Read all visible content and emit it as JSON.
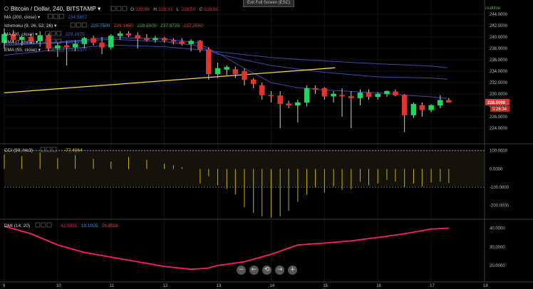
{
  "header": {
    "symbol_title": "Bitcoin / Dollar, 240, BITSTAMP",
    "ohlc": [
      {
        "label": "O",
        "value": "228.88"
      },
      {
        "label": "H",
        "value": "229.31"
      },
      {
        "label": "L",
        "value": "228.50"
      },
      {
        "label": "C",
        "value": "228.50"
      }
    ],
    "exit_fullscreen": "Exit Full Screen (ESC)",
    "realtime": "realtime"
  },
  "indicators": [
    {
      "name": "MA (200, close)",
      "values": [
        {
          "v": "234.5857",
          "color": "#3a6bd1"
        }
      ]
    },
    {
      "name": "Ichimoku (9, 26, 52, 26)",
      "values": [
        {
          "v": "225.7500",
          "color": "#2196f3"
        },
        {
          "v": "229.1450",
          "color": "#e53935"
        },
        {
          "v": "228.5000",
          "color": "#4caf50"
        },
        {
          "v": "237.8725",
          "color": "#4caf50"
        },
        {
          "v": "237.2550",
          "color": "#e53935"
        }
      ]
    },
    {
      "name": "MA (20, close)",
      "values": [
        {
          "v": "229.1975",
          "color": "#3a6bd1"
        }
      ]
    },
    {
      "name": "EMA (7, close)",
      "values": [
        {
          "v": "228.5972",
          "color": "#3a6bd1"
        }
      ]
    },
    {
      "name": "EMA (55, close)",
      "values": [
        {
          "v": "232.5377",
          "color": "#3a6bd1"
        }
      ]
    }
  ],
  "price_badges": {
    "last": "228.5000",
    "countdown": "3:28:34"
  },
  "cci_panel": {
    "label": "CCI (50, hlc3)",
    "value": "-77.4064",
    "ticks": [
      "100.0000",
      "0.0000",
      "-100.0000",
      "-200.0000"
    ]
  },
  "dmi_panel": {
    "label": "DMI (14, 20)",
    "values": [
      {
        "v": "42.5931",
        "color": "#e91e63"
      },
      {
        "v": "10.1925",
        "color": "#2196f3"
      },
      {
        "v": "26.8598",
        "color": "#e53935"
      }
    ],
    "ticks": [
      "40.0000",
      "30.0000",
      "20.0000"
    ]
  },
  "nav_buttons": [
    "−",
    "←",
    "⟲",
    "→",
    "+"
  ],
  "chart_data": {
    "type": "candlestick",
    "title": "Bitcoin / Dollar, 240, BITSTAMP",
    "x_ticks": [
      "9",
      "10",
      "11",
      "12",
      "13",
      "14",
      "15",
      "16",
      "17",
      "18"
    ],
    "x_range": [
      9,
      18
    ],
    "y_ticks": [
      "244.0000",
      "242.0000",
      "240.0000",
      "238.0000",
      "236.0000",
      "234.0000",
      "232.0000",
      "230.0000",
      "228.0000",
      "226.0000",
      "224.0000"
    ],
    "ylim": [
      221.5,
      246
    ],
    "candles": [
      {
        "t": 9.0,
        "o": 239.0,
        "h": 241.5,
        "l": 238.0,
        "c": 240.5
      },
      {
        "t": 9.17,
        "o": 240.5,
        "h": 241.2,
        "l": 239.0,
        "c": 239.5
      },
      {
        "t": 9.33,
        "o": 239.5,
        "h": 240.3,
        "l": 238.5,
        "c": 240.0
      },
      {
        "t": 9.5,
        "o": 240.0,
        "h": 240.5,
        "l": 238.8,
        "c": 239.3
      },
      {
        "t": 9.67,
        "o": 239.3,
        "h": 241.0,
        "l": 238.3,
        "c": 240.3
      },
      {
        "t": 9.83,
        "o": 240.3,
        "h": 240.6,
        "l": 237.5,
        "c": 238.0
      },
      {
        "t": 10.0,
        "o": 238.0,
        "h": 239.0,
        "l": 236.5,
        "c": 238.5
      },
      {
        "t": 10.17,
        "o": 238.5,
        "h": 239.2,
        "l": 235.0,
        "c": 238.2
      },
      {
        "t": 10.33,
        "o": 238.2,
        "h": 239.5,
        "l": 237.5,
        "c": 238.8
      },
      {
        "t": 10.5,
        "o": 238.8,
        "h": 240.0,
        "l": 238.0,
        "c": 239.8
      },
      {
        "t": 10.67,
        "o": 239.8,
        "h": 240.2,
        "l": 238.5,
        "c": 239.0
      },
      {
        "t": 10.83,
        "o": 239.0,
        "h": 240.0,
        "l": 237.0,
        "c": 238.2
      },
      {
        "t": 11.0,
        "o": 238.2,
        "h": 240.5,
        "l": 237.8,
        "c": 240.2
      },
      {
        "t": 11.17,
        "o": 240.2,
        "h": 241.0,
        "l": 239.5,
        "c": 240.6
      },
      {
        "t": 11.33,
        "o": 240.6,
        "h": 241.0,
        "l": 240.0,
        "c": 240.3
      },
      {
        "t": 11.5,
        "o": 240.3,
        "h": 240.8,
        "l": 238.0,
        "c": 239.8
      },
      {
        "t": 11.67,
        "o": 239.8,
        "h": 240.5,
        "l": 239.2,
        "c": 239.5
      },
      {
        "t": 11.83,
        "o": 239.5,
        "h": 240.2,
        "l": 239.0,
        "c": 239.8
      },
      {
        "t": 12.0,
        "o": 239.8,
        "h": 240.0,
        "l": 239.0,
        "c": 239.4
      },
      {
        "t": 12.17,
        "o": 239.4,
        "h": 239.8,
        "l": 238.7,
        "c": 239.2
      },
      {
        "t": 12.33,
        "o": 239.2,
        "h": 239.8,
        "l": 238.5,
        "c": 238.8
      },
      {
        "t": 12.5,
        "o": 238.8,
        "h": 239.6,
        "l": 237.5,
        "c": 239.3
      },
      {
        "t": 12.67,
        "o": 239.3,
        "h": 239.5,
        "l": 237.3,
        "c": 237.8
      },
      {
        "t": 12.83,
        "o": 237.8,
        "h": 238.2,
        "l": 232.5,
        "c": 233.5
      },
      {
        "t": 13.0,
        "o": 233.5,
        "h": 235.5,
        "l": 232.8,
        "c": 234.5
      },
      {
        "t": 13.17,
        "o": 234.3,
        "h": 235.0,
        "l": 233.3,
        "c": 234.7
      },
      {
        "t": 13.33,
        "o": 234.3,
        "h": 234.8,
        "l": 232.8,
        "c": 233.5
      },
      {
        "t": 13.5,
        "o": 234.0,
        "h": 234.5,
        "l": 231.5,
        "c": 232.5
      },
      {
        "t": 13.67,
        "o": 232.5,
        "h": 232.8,
        "l": 231.0,
        "c": 231.8
      },
      {
        "t": 13.83,
        "o": 231.5,
        "h": 232.0,
        "l": 229.0,
        "c": 229.8
      },
      {
        "t": 14.0,
        "o": 229.8,
        "h": 230.5,
        "l": 228.5,
        "c": 229.7
      },
      {
        "t": 14.17,
        "o": 229.7,
        "h": 230.5,
        "l": 224.0,
        "c": 228.3
      },
      {
        "t": 14.33,
        "o": 228.3,
        "h": 228.8,
        "l": 227.5,
        "c": 228.0
      },
      {
        "t": 14.5,
        "o": 228.0,
        "h": 229.0,
        "l": 225.0,
        "c": 228.5
      },
      {
        "t": 14.67,
        "o": 228.5,
        "h": 231.5,
        "l": 227.8,
        "c": 231.0
      },
      {
        "t": 14.83,
        "o": 231.0,
        "h": 231.5,
        "l": 230.0,
        "c": 230.8
      },
      {
        "t": 15.0,
        "o": 231.0,
        "h": 231.2,
        "l": 229.0,
        "c": 229.6
      },
      {
        "t": 15.17,
        "o": 229.6,
        "h": 230.5,
        "l": 228.5,
        "c": 230.0
      },
      {
        "t": 15.33,
        "o": 229.8,
        "h": 231.0,
        "l": 226.0,
        "c": 229.6
      },
      {
        "t": 15.5,
        "o": 229.6,
        "h": 230.5,
        "l": 224.0,
        "c": 229.3
      },
      {
        "t": 15.67,
        "o": 229.3,
        "h": 230.8,
        "l": 228.0,
        "c": 230.2
      },
      {
        "t": 15.83,
        "o": 230.2,
        "h": 230.8,
        "l": 229.0,
        "c": 229.5
      },
      {
        "t": 16.0,
        "o": 229.5,
        "h": 230.3,
        "l": 229.0,
        "c": 230.0
      },
      {
        "t": 16.17,
        "o": 230.0,
        "h": 230.6,
        "l": 229.5,
        "c": 230.5
      },
      {
        "t": 16.33,
        "o": 230.4,
        "h": 230.8,
        "l": 229.6,
        "c": 229.8
      },
      {
        "t": 16.5,
        "o": 229.8,
        "h": 230.0,
        "l": 223.3,
        "c": 226.3
      },
      {
        "t": 16.67,
        "o": 226.3,
        "h": 228.5,
        "l": 225.8,
        "c": 228.2
      },
      {
        "t": 16.83,
        "o": 228.0,
        "h": 228.5,
        "l": 226.0,
        "c": 227.2
      },
      {
        "t": 17.0,
        "o": 227.2,
        "h": 228.2,
        "l": 226.8,
        "c": 228.0
      },
      {
        "t": 17.17,
        "o": 228.0,
        "h": 229.8,
        "l": 227.5,
        "c": 228.9
      },
      {
        "t": 17.33,
        "o": 228.9,
        "h": 229.3,
        "l": 228.5,
        "c": 228.5
      }
    ],
    "lines": [
      {
        "name": "MA (200, close)",
        "color": "#3949ab",
        "points": [
          [
            9.0,
            236.8
          ],
          [
            10.0,
            237.8
          ],
          [
            11.0,
            238.6
          ],
          [
            12.0,
            238.3
          ],
          [
            12.6,
            237.8
          ],
          [
            13.0,
            237.4
          ],
          [
            14.0,
            236.4
          ],
          [
            15.0,
            235.8
          ],
          [
            16.0,
            235.3
          ],
          [
            17.0,
            234.9
          ],
          [
            17.3,
            234.6
          ]
        ]
      },
      {
        "name": "EMA (55, close)",
        "color": "#3949ab",
        "points": [
          [
            9.0,
            238.5
          ],
          [
            10.0,
            239.0
          ],
          [
            11.0,
            239.6
          ],
          [
            12.0,
            239.2
          ],
          [
            12.6,
            238.5
          ],
          [
            13.0,
            237.0
          ],
          [
            14.0,
            235.0
          ],
          [
            15.0,
            233.8
          ],
          [
            16.0,
            233.0
          ],
          [
            17.0,
            232.8
          ],
          [
            17.3,
            232.6
          ]
        ]
      },
      {
        "name": "MA (20, close)",
        "color": "#3949ab",
        "points": [
          [
            9.0,
            238.7
          ],
          [
            10.0,
            239.1
          ],
          [
            11.0,
            239.9
          ],
          [
            12.0,
            239.7
          ],
          [
            12.6,
            239.0
          ],
          [
            13.0,
            237.2
          ],
          [
            13.5,
            234.5
          ],
          [
            14.0,
            232.0
          ],
          [
            14.5,
            231.1
          ],
          [
            15.0,
            230.7
          ],
          [
            16.0,
            230.2
          ],
          [
            16.5,
            229.8
          ],
          [
            17.0,
            229.5
          ],
          [
            17.3,
            229.2
          ]
        ]
      },
      {
        "name": "Trendline",
        "color": "#fdd835",
        "points": [
          [
            9.0,
            230.2
          ],
          [
            15.2,
            234.6
          ]
        ]
      }
    ]
  },
  "cci_data": {
    "ylim": [
      -260,
      130
    ],
    "bars": [
      [
        9.0,
        80
      ],
      [
        9.33,
        70
      ],
      [
        9.67,
        90
      ],
      [
        10.0,
        60
      ],
      [
        10.33,
        75
      ],
      [
        10.67,
        55
      ],
      [
        11.0,
        40
      ],
      [
        11.33,
        65
      ],
      [
        11.67,
        50
      ],
      [
        12.0,
        30
      ],
      [
        12.17,
        20
      ],
      [
        12.33,
        10
      ],
      [
        12.67,
        -80
      ],
      [
        12.83,
        -40
      ],
      [
        13.0,
        -90
      ],
      [
        13.17,
        -110
      ],
      [
        13.33,
        -140
      ],
      [
        13.5,
        -210
      ],
      [
        13.67,
        -240
      ],
      [
        13.83,
        -260
      ],
      [
        14.0,
        -265
      ],
      [
        14.17,
        -260
      ],
      [
        14.33,
        -230
      ],
      [
        14.5,
        -180
      ],
      [
        14.67,
        -140
      ],
      [
        14.83,
        -100
      ],
      [
        15.0,
        -130
      ],
      [
        15.17,
        -95
      ],
      [
        15.33,
        -115
      ],
      [
        15.5,
        -110
      ],
      [
        15.67,
        -70
      ],
      [
        15.83,
        -90
      ],
      [
        16.0,
        -80
      ],
      [
        16.17,
        -60
      ],
      [
        16.33,
        -70
      ],
      [
        16.5,
        -100
      ],
      [
        16.67,
        -80
      ],
      [
        16.83,
        -95
      ],
      [
        17.0,
        -75
      ],
      [
        17.17,
        -70
      ],
      [
        17.33,
        -77
      ]
    ]
  },
  "dmi_data": {
    "ylim": [
      12,
      44
    ],
    "points": [
      [
        9.0,
        41
      ],
      [
        9.5,
        37
      ],
      [
        10.0,
        31
      ],
      [
        10.5,
        27
      ],
      [
        11.0,
        24.5
      ],
      [
        11.5,
        22
      ],
      [
        12.0,
        19.5
      ],
      [
        12.5,
        18.0
      ],
      [
        12.8,
        18.5
      ],
      [
        13.0,
        20.0
      ],
      [
        13.5,
        22.0
      ],
      [
        14.0,
        26.0
      ],
      [
        14.3,
        29.0
      ],
      [
        14.5,
        31.0
      ],
      [
        15.0,
        32.0
      ],
      [
        15.5,
        33.2
      ],
      [
        16.0,
        35.0
      ],
      [
        16.5,
        37.0
      ],
      [
        17.0,
        39.5
      ],
      [
        17.33,
        40.0
      ]
    ]
  }
}
